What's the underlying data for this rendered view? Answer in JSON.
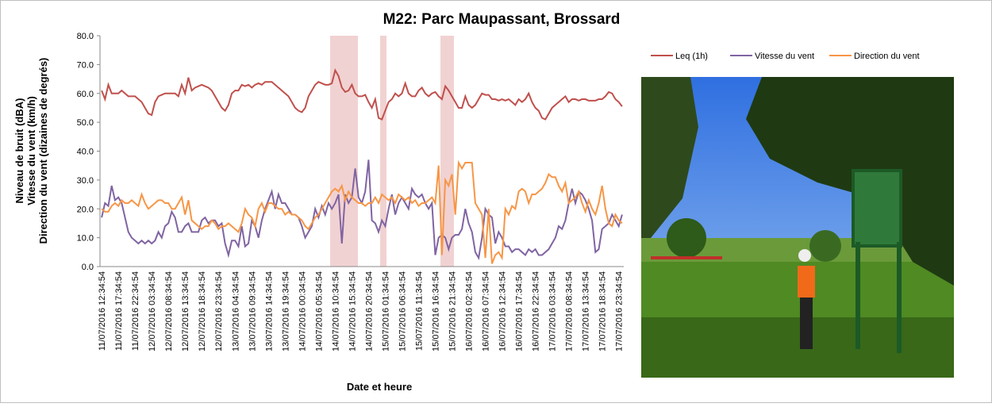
{
  "chart_data": {
    "type": "line",
    "title": "M22: Parc Maupassant, Brossard",
    "xlabel": "Date et heure",
    "ylabel": [
      "Niveau de bruit (dBA)",
      "Vitesse du vent (km/h)",
      "Direction du vent (dizaines de degrés)"
    ],
    "ylim": [
      0,
      80
    ],
    "yticks": [
      {
        "value": 0,
        "label": "0.0"
      },
      {
        "value": 10,
        "label": "10.0"
      },
      {
        "value": 20,
        "label": "20.0"
      },
      {
        "value": 30,
        "label": "30.0"
      },
      {
        "value": 40,
        "label": "40.0"
      },
      {
        "value": 50,
        "label": "50.0"
      },
      {
        "value": 60,
        "label": "60.0"
      },
      {
        "value": 70,
        "label": "70.0"
      },
      {
        "value": 80,
        "label": "80.0"
      }
    ],
    "grid": false,
    "legend": "top-right",
    "categories": [
      "11/07/2016 12:34:54",
      null,
      null,
      null,
      null,
      "11/07/2016 17:34:54",
      null,
      null,
      null,
      null,
      "11/07/2016 22:34:54",
      null,
      null,
      null,
      null,
      "12/07/2016 03:34:54",
      null,
      null,
      null,
      null,
      "12/07/2016 08:34:54",
      null,
      null,
      null,
      null,
      "12/07/2016 13:34:54",
      null,
      null,
      null,
      null,
      "12/07/2016 18:34:54",
      null,
      null,
      null,
      null,
      "12/07/2016 23:34:54",
      null,
      null,
      null,
      null,
      "13/07/2016 04:34:54",
      null,
      null,
      null,
      null,
      "13/07/2016 09:34:54",
      null,
      null,
      null,
      null,
      "13/07/2016 14:34:54",
      null,
      null,
      null,
      null,
      "13/07/2016 19:34:54",
      null,
      null,
      null,
      null,
      "14/07/2016 00:34:54",
      null,
      null,
      null,
      null,
      "14/07/2016 05:34:54",
      null,
      null,
      null,
      null,
      "14/07/2016 10:34:54",
      null,
      null,
      null,
      null,
      "14/07/2016 15:34:54",
      null,
      null,
      null,
      null,
      "14/07/2016 20:34:54",
      null,
      null,
      null,
      null,
      "15/07/2016 01:34:54",
      null,
      null,
      null,
      null,
      "15/07/2016 06:34:54",
      null,
      null,
      null,
      null,
      "15/07/2016 11:34:54",
      null,
      null,
      null,
      null,
      "15/07/2016 16:34:54",
      null,
      null,
      null,
      null,
      "15/07/2016 21:34:54",
      null,
      null,
      null,
      null,
      "16/07/2016 02:34:54",
      null,
      null,
      null,
      null,
      "16/07/2016 07:34:54",
      null,
      null,
      null,
      null,
      "16/07/2016 12:34:54",
      null,
      null,
      null,
      null,
      "16/07/2016 17:34:54",
      null,
      null,
      null,
      null,
      "16/07/2016 22:34:54",
      null,
      null,
      null,
      null,
      "17/07/2016 03:34:54",
      null,
      null,
      null,
      null,
      "17/07/2016 08:34:54",
      null,
      null,
      null,
      null,
      "17/07/2016 13:34:54",
      null,
      null,
      null,
      null,
      "17/07/2016 18:34:54",
      null,
      null,
      null,
      null,
      "17/07/2016 23:34:54",
      null
    ],
    "series": [
      {
        "name": "Leq (1h)",
        "color": "#c0504d",
        "values": [
          61,
          58,
          63,
          60,
          60,
          60,
          61,
          60,
          59,
          59,
          59,
          58,
          57,
          55,
          53,
          52.5,
          57,
          59,
          59.5,
          60,
          60,
          60,
          60,
          59,
          63,
          60,
          65.5,
          61,
          62,
          62.5,
          63,
          62.5,
          62,
          61,
          59,
          57,
          55,
          54,
          56,
          60,
          61,
          61,
          63,
          62.5,
          63,
          62,
          63,
          63.5,
          63,
          64,
          64,
          64,
          63,
          62,
          61,
          60,
          59,
          57,
          55,
          54,
          53.5,
          55,
          59,
          61,
          63,
          64,
          63.5,
          63,
          63,
          63.5,
          68,
          66,
          62,
          60.5,
          61,
          63,
          60,
          59,
          59,
          59.5,
          57,
          55,
          58,
          51.5,
          51,
          54,
          57,
          58,
          60,
          59,
          60,
          63.5,
          60,
          59,
          59,
          61,
          62,
          60,
          59,
          60,
          60.5,
          59,
          58,
          62.5,
          61,
          59,
          57,
          55,
          55,
          59,
          56,
          55,
          56,
          58,
          60,
          59.5,
          59.5,
          58,
          58,
          57.5,
          58,
          57.5,
          58,
          57,
          56,
          58,
          57,
          58,
          60,
          57,
          55,
          54,
          51.5,
          51,
          53,
          55,
          56,
          57,
          58,
          59,
          57,
          58,
          58,
          57.5,
          58,
          58,
          57.5,
          57.5,
          57.5,
          58,
          58,
          59,
          60.5,
          60,
          58,
          57,
          55.5
        ]
      },
      {
        "name": "Vitesse du vent",
        "color": "#8064a2",
        "values": [
          17,
          22,
          21,
          28,
          23,
          24,
          22,
          17,
          12,
          10,
          9,
          8,
          9,
          8,
          9,
          8,
          9,
          12,
          10,
          14,
          15,
          19,
          17,
          12,
          12,
          14,
          15,
          12,
          12,
          12,
          16,
          17,
          15,
          16,
          16,
          14,
          15,
          8,
          4,
          9,
          9,
          7,
          14,
          7,
          8,
          16,
          14,
          10,
          16,
          20,
          23,
          26,
          20,
          25,
          22,
          22,
          20,
          18,
          18,
          17,
          14,
          10,
          12,
          14,
          20,
          17,
          21,
          18,
          22,
          20,
          22,
          25,
          8,
          25,
          22,
          24,
          34,
          24,
          22,
          26,
          37,
          16,
          15,
          12,
          16,
          14,
          20,
          25,
          18,
          22,
          24,
          22,
          20,
          27,
          25,
          24,
          25,
          22,
          20,
          22,
          4,
          10,
          11,
          10,
          6,
          10,
          11,
          11,
          13,
          20,
          15,
          12,
          5,
          3,
          10,
          20,
          18,
          17,
          8,
          12,
          10,
          7,
          7,
          5,
          6,
          6,
          5,
          4,
          6,
          5,
          6,
          4,
          4,
          5,
          6,
          8,
          10,
          14,
          13,
          16,
          22,
          27,
          22,
          26,
          25,
          23,
          20,
          16,
          5,
          6,
          13,
          14,
          15,
          18,
          16,
          14,
          18
        ]
      },
      {
        "name": "Direction du vent",
        "color": "#f79646",
        "values": [
          20,
          19,
          19,
          21,
          22,
          21,
          23,
          22,
          22,
          23,
          22,
          21,
          25,
          22,
          20,
          21,
          22,
          23,
          23,
          22,
          22,
          20,
          20,
          22,
          24,
          18,
          23,
          16,
          15,
          14,
          13,
          14,
          14,
          16,
          15,
          13,
          14,
          14,
          15,
          14,
          13,
          12,
          15,
          20,
          18,
          17,
          14,
          20,
          22,
          19,
          22,
          22,
          21,
          20,
          20,
          18,
          19,
          18,
          18,
          17,
          16,
          14,
          13,
          15,
          17,
          18,
          20,
          22,
          24,
          26,
          27,
          26,
          28,
          23,
          26,
          24,
          23,
          22,
          22,
          21,
          22,
          22,
          24,
          22,
          25,
          24,
          23,
          24,
          22,
          25,
          24,
          23,
          24,
          22,
          23,
          21,
          22,
          22,
          23,
          24,
          22,
          35,
          4,
          30,
          28,
          32,
          18,
          36,
          34,
          36,
          36,
          36,
          22,
          20,
          18,
          3,
          20,
          1,
          4,
          5,
          3,
          20,
          18,
          21,
          20,
          26,
          27,
          26,
          22,
          25,
          25,
          26,
          27,
          29,
          32,
          31,
          31,
          28,
          26,
          29,
          22,
          23,
          24,
          26,
          22,
          19,
          23,
          20,
          18,
          22,
          28,
          20,
          15,
          14,
          18,
          16,
          15
        ]
      }
    ]
  }
}
